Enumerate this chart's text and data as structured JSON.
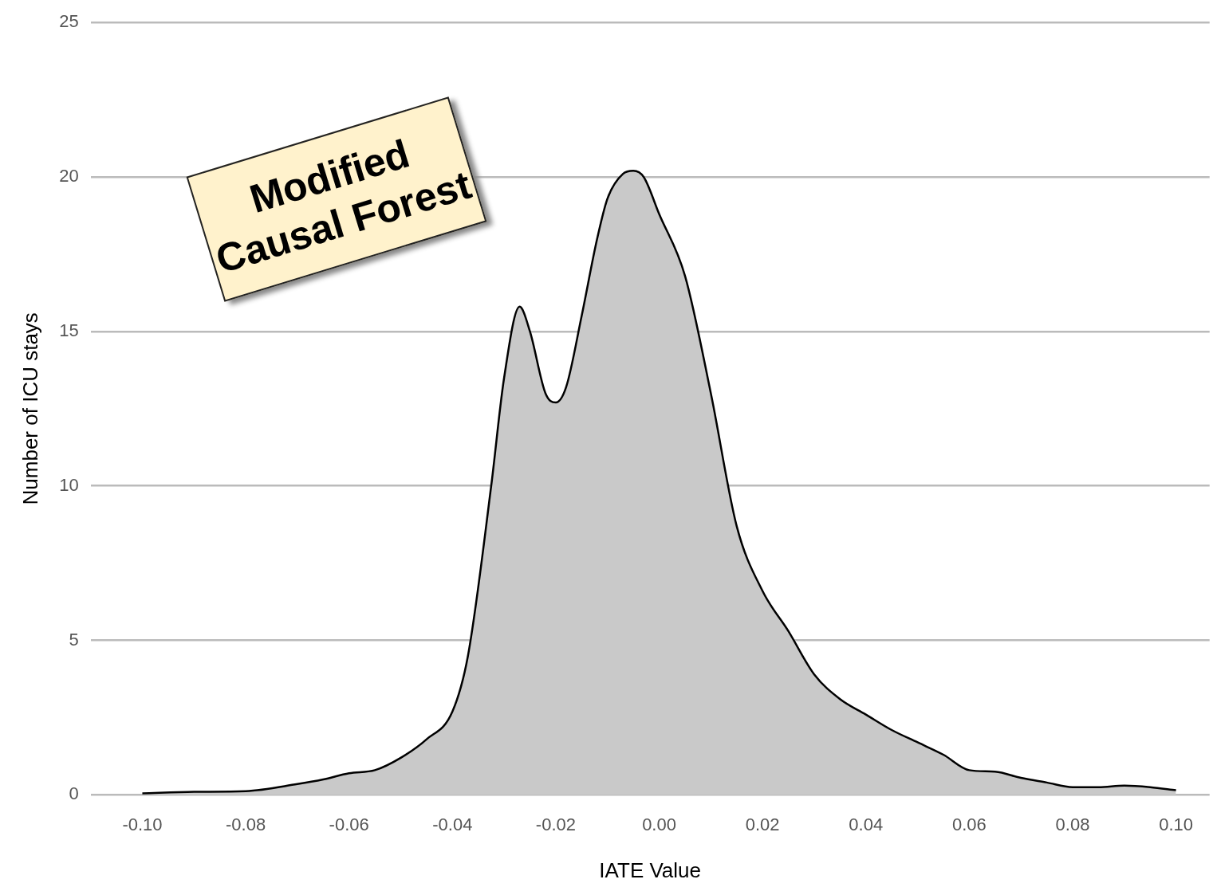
{
  "chart_data": {
    "type": "area",
    "xlabel": "IATE Value",
    "ylabel": "Number of ICU stays",
    "annotations": [
      "Modified Causal Forest"
    ],
    "x": [
      -0.1,
      -0.09,
      -0.08,
      -0.07,
      -0.065,
      -0.06,
      -0.055,
      -0.05,
      -0.045,
      -0.04,
      -0.037,
      -0.0325,
      -0.03,
      -0.027,
      -0.025,
      -0.022,
      -0.02,
      -0.018,
      -0.015,
      -0.012,
      -0.01,
      -0.007,
      -0.005,
      -0.003,
      0.0,
      0.005,
      0.01,
      0.015,
      0.02,
      0.025,
      0.03,
      0.035,
      0.04,
      0.045,
      0.05,
      0.055,
      0.06,
      0.065,
      0.07,
      0.075,
      0.08,
      0.085,
      0.09,
      0.095,
      0.1
    ],
    "series": [
      {
        "color": "#c9c9c9",
        "values": [
          0.05,
          0.1,
          0.12,
          0.35,
          0.5,
          0.7,
          0.8,
          1.2,
          1.8,
          2.7,
          4.5,
          10,
          13.5,
          15.8,
          15,
          13,
          12.7,
          13.2,
          15.5,
          18,
          19.3,
          20.1,
          20.2,
          20,
          18.8,
          16.8,
          13,
          8.7,
          6.6,
          5.3,
          3.9,
          3.1,
          2.6,
          2.1,
          1.7,
          1.3,
          0.8,
          0.75,
          0.55,
          0.4,
          0.25,
          0.25,
          0.3,
          0.25,
          0.15
        ]
      }
    ],
    "xlim": [
      -0.11,
      0.1065
    ],
    "ylim": [
      0,
      25
    ],
    "xticks": [
      {
        "value": -0.1,
        "label": "-0.10"
      },
      {
        "value": -0.08,
        "label": "-0.08"
      },
      {
        "value": -0.06,
        "label": "-0.06"
      },
      {
        "value": -0.04,
        "label": "-0.04"
      },
      {
        "value": -0.02,
        "label": "-0.02"
      },
      {
        "value": 0,
        "label": "0.00"
      },
      {
        "value": 0.02,
        "label": "0.02"
      },
      {
        "value": 0.04,
        "label": "0.04"
      },
      {
        "value": 0.06,
        "label": "0.06"
      },
      {
        "value": 0.08,
        "label": "0.08"
      },
      {
        "value": 0.1,
        "label": "0.10"
      }
    ],
    "yticks": [
      0,
      5,
      10,
      15,
      20,
      25
    ],
    "grid": "y",
    "legend": false,
    "marker": "none",
    "line_style": "solid"
  }
}
